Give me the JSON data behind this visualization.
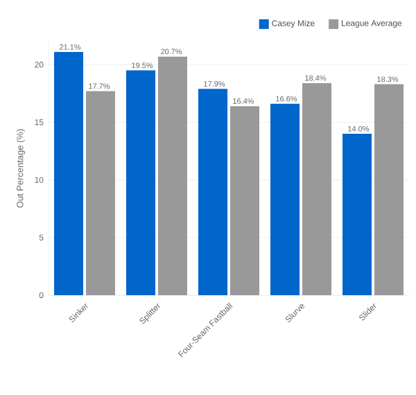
{
  "chart_data": {
    "type": "bar",
    "ylabel": "Out Percentage (%)",
    "categories": [
      "Sinker",
      "Splitter",
      "Four-Seam Fastball",
      "Slurve",
      "Slider"
    ],
    "series": [
      {
        "name": "Casey Mize",
        "color": "#0066cc",
        "values": [
          21.1,
          19.5,
          17.9,
          16.6,
          14.0
        ],
        "value_labels": [
          "21.1%",
          "19.5%",
          "17.9%",
          "16.6%",
          "14.0%"
        ]
      },
      {
        "name": "League Average",
        "color": "#999999",
        "values": [
          17.7,
          20.7,
          16.4,
          18.4,
          18.3
        ],
        "value_labels": [
          "17.7%",
          "20.7%",
          "16.4%",
          "18.4%",
          "18.3%"
        ]
      }
    ],
    "ylim": [
      0,
      22
    ],
    "yticks": [
      0,
      5,
      10,
      15,
      20
    ],
    "grid": "y",
    "legend": "top right"
  }
}
